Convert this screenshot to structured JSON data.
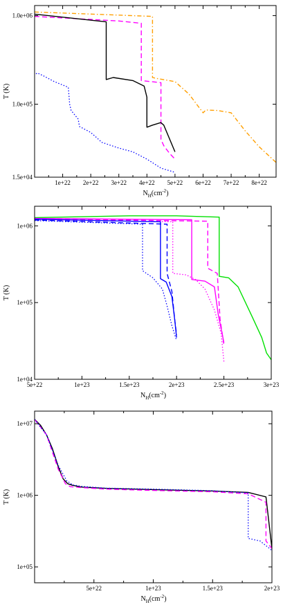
{
  "chart_data": [
    {
      "type": "line",
      "xlabel": "N",
      "xlabel_sub": "H",
      "xlabel_unit": "(cm",
      "xlabel_sup": "-2",
      "xlabel_close": ")",
      "ylabel": "T (K)",
      "xlim": [
        0,
        8.6e+22
      ],
      "ylim": [
        15000,
        1300000
      ],
      "yscale": "log",
      "xticks": [
        1e+22,
        2e+22,
        3e+22,
        4e+22,
        5e+22,
        6e+22,
        7e+22,
        8e+22
      ],
      "xtick_labels": [
        "1e+22",
        "2e+22",
        "3e+22",
        "4e+22",
        "5e+22",
        "6e+22",
        "7e+22",
        "8e+22"
      ],
      "yticks": [
        15000,
        100000,
        1000000
      ],
      "ytick_labels": [
        "1.5e+04",
        "1.0e+05",
        "1.0e+06"
      ],
      "series": [
        {
          "color": "#ff9f00",
          "dash": "dashdot",
          "x": [
            0,
            4.2e+22,
            4.2e+22,
            4.35e+22,
            5e+22,
            5.5e+22,
            6e+22,
            6.1e+22,
            6.5e+22,
            7e+22,
            7.5e+22,
            8e+22,
            8.6e+22
          ],
          "y": [
            1100000,
            980000,
            200000,
            195000,
            180000,
            130000,
            80000,
            86000,
            85000,
            80000,
            50000,
            33000,
            22000
          ]
        },
        {
          "color": "#ff00ff",
          "dash": "dash",
          "x": [
            0,
            3e+22,
            3.8e+22,
            3.8e+22,
            4.5e+22,
            4.5e+22,
            4.6e+22,
            4.8e+22,
            5e+22
          ],
          "y": [
            980000,
            870000,
            820000,
            185000,
            175000,
            40000,
            34000,
            28000,
            24000
          ]
        },
        {
          "color": "#000000",
          "dash": "solid",
          "x": [
            0,
            2.55e+22,
            2.55e+22,
            2.8e+22,
            3.5e+22,
            3.9e+22,
            4e+22,
            4e+22,
            4.2e+22,
            4.5e+22,
            4.6e+22,
            5e+22
          ],
          "y": [
            1040000,
            850000,
            190000,
            200000,
            185000,
            160000,
            120000,
            55000,
            58000,
            62000,
            58000,
            29000
          ]
        },
        {
          "color": "#0000ff",
          "dash": "dot",
          "x": [
            500000000000000000000,
            1e+21,
            3e+21,
            7e+21,
            1.1e+22,
            1.2e+22,
            1.25e+22,
            1.3e+22,
            1.55e+22,
            1.6e+22,
            2e+22,
            2.4e+22,
            3e+22,
            3.5e+22,
            4e+22,
            4.5e+22,
            5e+22
          ],
          "y": [
            220000,
            225000,
            210000,
            180000,
            160000,
            155000,
            100000,
            85000,
            68000,
            56000,
            48000,
            37000,
            32000,
            29000,
            24000,
            19000,
            17000
          ]
        }
      ]
    },
    {
      "type": "line",
      "xlabel": "N",
      "xlabel_sub": "H",
      "xlabel_unit": "(cm",
      "xlabel_sup": "-2",
      "xlabel_close": ")",
      "ylabel": "T (K)",
      "xlim": [
        5e+22,
        3e+23
      ],
      "ylim": [
        10000,
        1800000
      ],
      "yscale": "log",
      "xticks": [
        5e+22,
        1e+23,
        1.5e+23,
        2e+23,
        2.5e+23,
        3e+23
      ],
      "xtick_labels": [
        "5e+22",
        "1e+23",
        "1.5e+23",
        "2e+23",
        "2.5e+23",
        "3e+23"
      ],
      "yticks": [
        10000,
        100000,
        1000000
      ],
      "ytick_labels": [
        "1e+04",
        "1e+05",
        "1e+06"
      ],
      "series": [
        {
          "color": "#00e000",
          "dash": "solid",
          "x": [
            5e+22,
            1.5e+23,
            2e+23,
            2.45e+23,
            2.45e+23,
            2.55e+23,
            2.65e+23,
            2.8e+23,
            2.9e+23,
            2.95e+23,
            3e+23
          ],
          "y": [
            1280000,
            1350000,
            1350000,
            1300000,
            220000,
            210000,
            160000,
            65000,
            35000,
            22000,
            18000
          ]
        },
        {
          "color": "#ff00ff",
          "dash": "solid",
          "x": [
            5e+22,
            2.16e+23,
            2.16e+23,
            2.3e+23,
            2.4e+23,
            2.44e+23,
            2.48e+23,
            2.5e+23
          ],
          "y": [
            1250000,
            1200000,
            200000,
            190000,
            160000,
            70000,
            40000,
            30000
          ]
        },
        {
          "color": "#ff00ff",
          "dash": "dash",
          "x": [
            5e+22,
            2.33e+23,
            2.33e+23,
            2.43e+23,
            2.46e+23,
            2.5e+23
          ],
          "y": [
            1230000,
            1150000,
            280000,
            240000,
            60000,
            28000
          ]
        },
        {
          "color": "#ff00ff",
          "dash": "dot",
          "x": [
            5e+22,
            1.96e+23,
            1.96e+23,
            2.1e+23,
            2.2e+23,
            2.3e+23,
            2.4e+23,
            2.47e+23,
            2.5e+23
          ],
          "y": [
            1200000,
            1130000,
            240000,
            230000,
            200000,
            150000,
            80000,
            40000,
            17000
          ]
        },
        {
          "color": "#0000ff",
          "dash": "solid",
          "x": [
            5e+22,
            1.83e+23,
            1.83e+23,
            1.89e+23,
            1.95e+23,
            1.98e+23,
            2e+23
          ],
          "y": [
            1220000,
            1130000,
            205000,
            185000,
            120000,
            60000,
            35000
          ]
        },
        {
          "color": "#0000ff",
          "dash": "dash",
          "x": [
            5e+22,
            1.9e+23,
            1.9e+23,
            1.95e+23,
            1.98e+23,
            2e+23
          ],
          "y": [
            1190000,
            1050000,
            240000,
            140000,
            60000,
            38000
          ]
        },
        {
          "color": "#0000ff",
          "dash": "dot",
          "x": [
            5e+22,
            1.64e+23,
            1.64e+23,
            1.75e+23,
            1.85e+23,
            1.9e+23,
            1.95e+23,
            2e+23
          ],
          "y": [
            1170000,
            1050000,
            260000,
            210000,
            150000,
            90000,
            50000,
            32000
          ]
        }
      ]
    },
    {
      "type": "line",
      "xlabel": "N",
      "xlabel_sub": "H",
      "xlabel_unit": "(cm",
      "xlabel_sup": "-2",
      "xlabel_close": ")",
      "ylabel": "T (K)",
      "xlim": [
        0,
        2e+23
      ],
      "ylim": [
        60000,
        15000000
      ],
      "yscale": "log",
      "xticks": [
        5e+22,
        1e+23,
        1.5e+23,
        2e+23
      ],
      "xtick_labels": [
        "5e+22",
        "1e+23",
        "1.5e+23",
        "2e+23"
      ],
      "yticks": [
        100000,
        1000000,
        10000000
      ],
      "ytick_labels": [
        "1e+05",
        "1e+06",
        "1e+07"
      ],
      "series": [
        {
          "color": "#000000",
          "dash": "solid",
          "x": [
            0,
            5e+21,
            1e+22,
            1.5e+22,
            2e+22,
            2.4e+22,
            2.8e+22,
            3.2e+22,
            4e+22,
            6e+22,
            1e+23,
            1.5e+23,
            1.8e+23,
            1.95e+23,
            2e+23
          ],
          "y": [
            11500000,
            9500000,
            7000000,
            4500000,
            2500000,
            1700000,
            1450000,
            1380000,
            1300000,
            1250000,
            1200000,
            1150000,
            1100000,
            950000,
            180000
          ]
        },
        {
          "color": "#ff00ff",
          "dash": "dash",
          "x": [
            0,
            1e+22,
            2e+22,
            2.6e+22,
            3e+22,
            4e+22,
            6e+22,
            1e+23,
            1.5e+23,
            1.8e+23,
            1.95e+23,
            1.95e+23,
            2e+23
          ],
          "y": [
            11500000,
            7000000,
            2300000,
            1450000,
            1320000,
            1280000,
            1220000,
            1170000,
            1120000,
            1050000,
            800000,
            230000,
            180000
          ]
        },
        {
          "color": "#0000ff",
          "dash": "dot",
          "x": [
            0,
            1e+22,
            2e+22,
            2.7e+22,
            3.2e+22,
            4e+22,
            6e+22,
            1e+23,
            1.5e+23,
            1.8e+23,
            1.8e+23,
            1.9e+23,
            2e+23
          ],
          "y": [
            11500000,
            7000000,
            2600000,
            1600000,
            1400000,
            1330000,
            1260000,
            1220000,
            1160000,
            1080000,
            250000,
            230000,
            170000
          ]
        }
      ]
    }
  ]
}
